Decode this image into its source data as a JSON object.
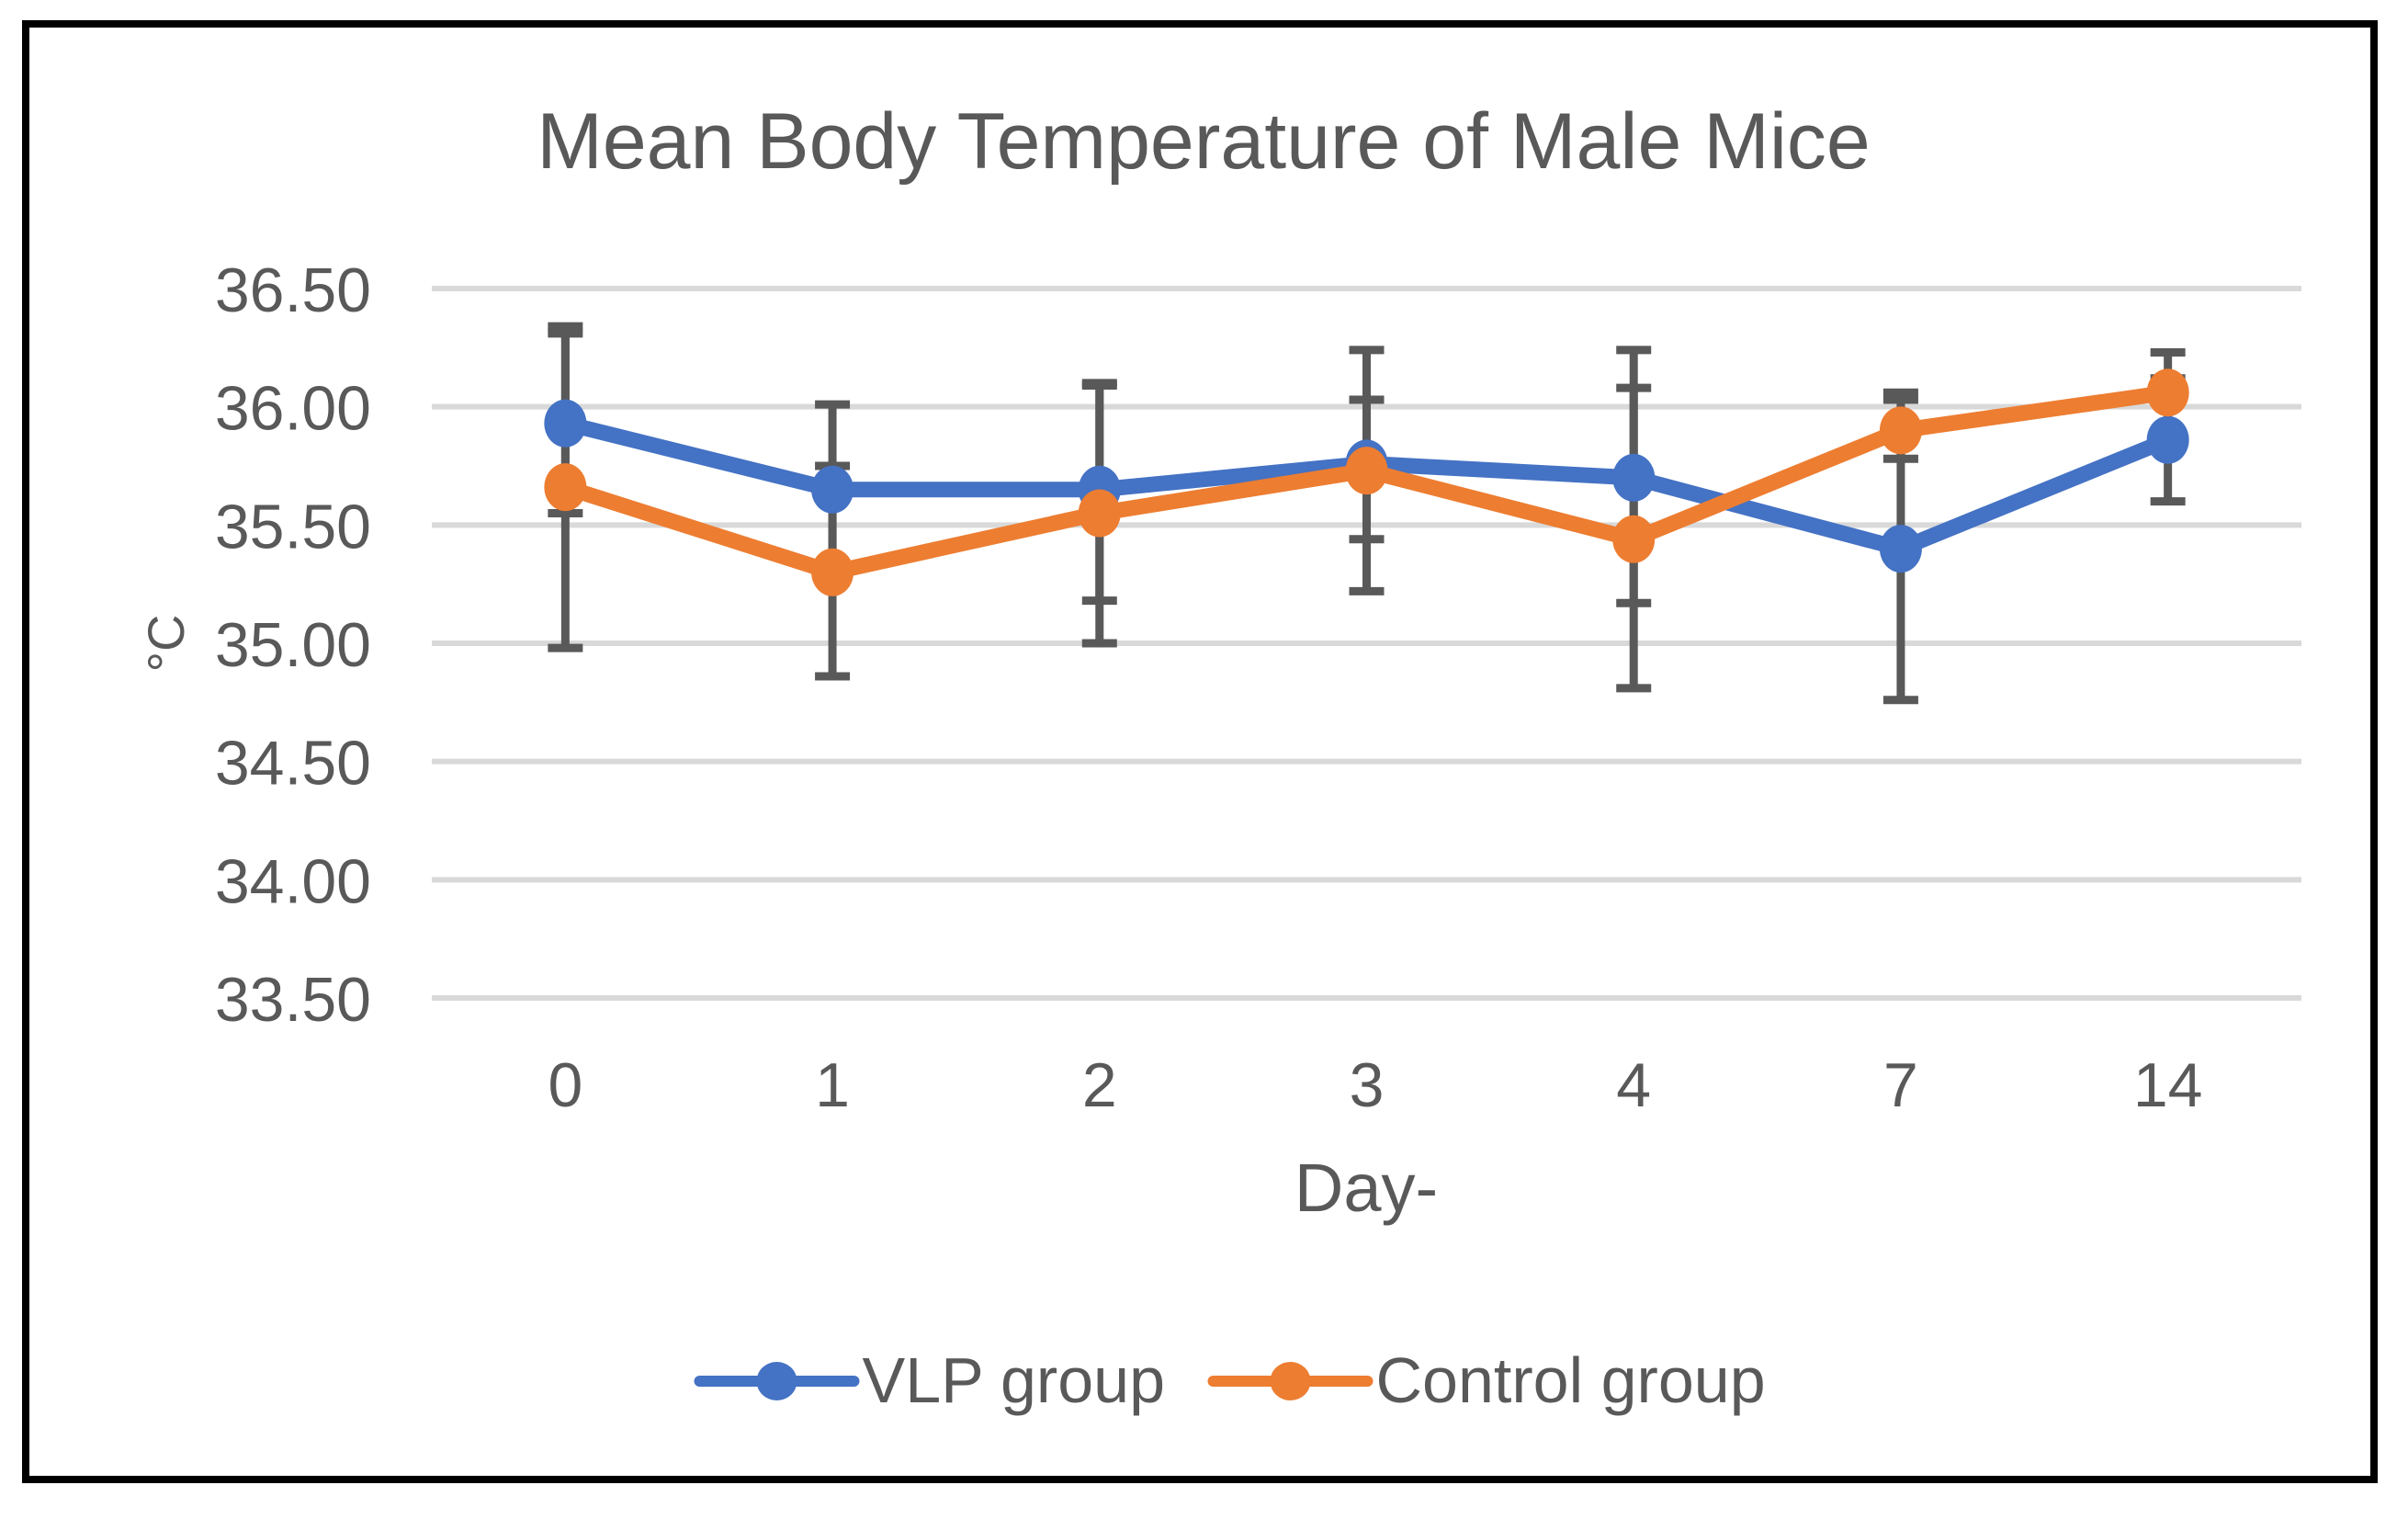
{
  "figure": {
    "background_color": "#ffffff",
    "border_color": "#000000",
    "text_color": "#595959",
    "gridline_color": "#d9d9d9",
    "errorbar_color": "#595959"
  },
  "chart_data": {
    "type": "line",
    "title": "Mean Body Temperature of Male Mice",
    "xlabel": "Day-",
    "ylabel": "°C",
    "categories": [
      "0",
      "1",
      "2",
      "3",
      "4",
      "7",
      "14"
    ],
    "y_ticks": [
      "36.50",
      "36.00",
      "35.50",
      "35.00",
      "34.50",
      "34.00",
      "33.50"
    ],
    "ylim": [
      33.5,
      36.5
    ],
    "grid": true,
    "error_bars": true,
    "legend_position": "bottom-center",
    "series": [
      {
        "name": "VLP group",
        "color": "#4472C4",
        "values": [
          35.93,
          35.65,
          35.65,
          35.76,
          35.7,
          35.4,
          35.86
        ],
        "error_low": [
          35.55,
          35.29,
          35.18,
          35.44,
          35.17,
          34.76,
          35.6
        ],
        "error_high": [
          36.31,
          36.01,
          36.09,
          36.03,
          36.24,
          36.06,
          36.12
        ]
      },
      {
        "name": "Control group",
        "color": "#ED7D31",
        "values": [
          35.66,
          35.3,
          35.55,
          35.73,
          35.44,
          35.9,
          36.06
        ],
        "error_low": [
          34.98,
          34.86,
          35.0,
          35.22,
          34.81,
          35.78,
          35.89
        ],
        "error_high": [
          36.34,
          35.75,
          36.1,
          36.24,
          36.08,
          36.03,
          36.23
        ]
      }
    ]
  },
  "legend": {
    "items": [
      {
        "label": "VLP group",
        "color": "#4472C4"
      },
      {
        "label": "Control group",
        "color": "#ED7D31"
      }
    ]
  }
}
